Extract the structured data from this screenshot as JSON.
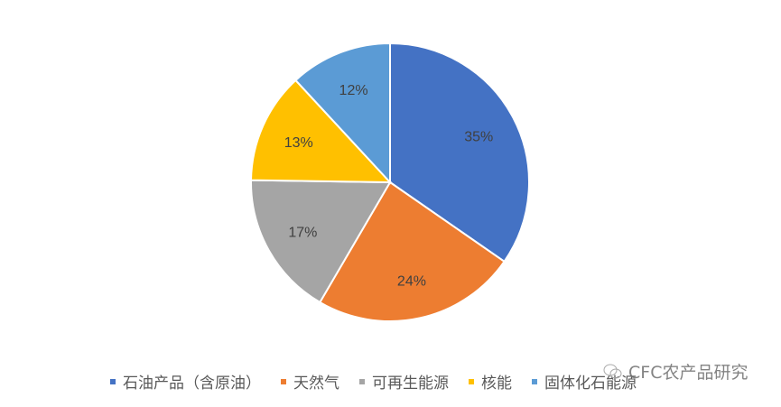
{
  "chart_data": {
    "type": "pie",
    "title": "",
    "categories": [
      "石油产品（含原油）",
      "天然气",
      "可再生能源",
      "核能",
      "固体化石能源"
    ],
    "values": [
      35,
      24,
      17,
      13,
      12
    ],
    "labels": [
      "35%",
      "24%",
      "17%",
      "13%",
      "12%"
    ],
    "colors": [
      "#4472C4",
      "#ED7D31",
      "#A5A5A5",
      "#FFC000",
      "#5B9BD5"
    ],
    "start_angle": "top, clockwise",
    "legend_position": "bottom"
  },
  "watermark": {
    "text": "CFC农产品研究",
    "icon": "wechat-icon"
  }
}
